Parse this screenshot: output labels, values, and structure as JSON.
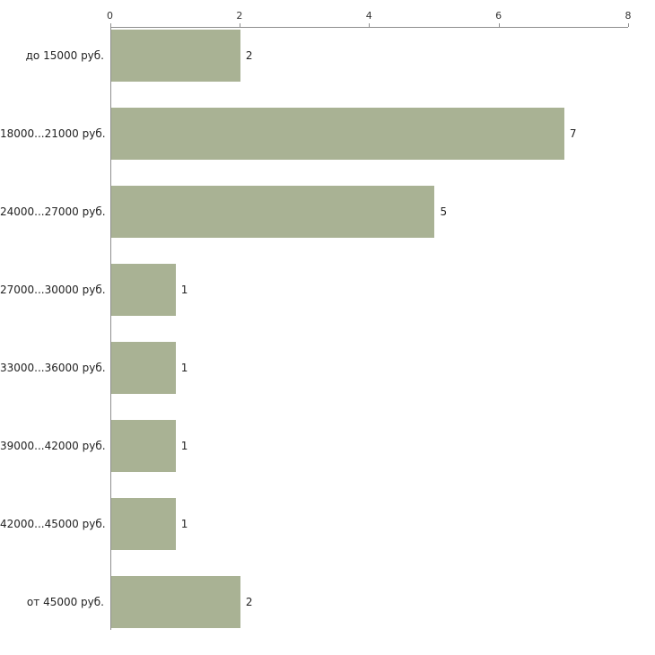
{
  "chart_data": {
    "type": "bar",
    "orientation": "horizontal",
    "title": "",
    "xlabel": "",
    "ylabel": "",
    "categories": [
      "до 15000 руб.",
      "18000...21000 руб.",
      "24000...27000 руб.",
      "27000...30000 руб.",
      "33000...36000 руб.",
      "39000...42000 руб.",
      "42000...45000 руб.",
      "от 45000 руб."
    ],
    "values": [
      2,
      7,
      5,
      1,
      1,
      1,
      1,
      2
    ],
    "value_labels": [
      "2",
      "7",
      "5",
      "1",
      "1",
      "1",
      "1",
      "2"
    ],
    "xlim": [
      0,
      8
    ],
    "xticks": [
      0,
      2,
      4,
      6,
      8
    ],
    "xtick_labels": [
      "0",
      "2",
      "4",
      "6",
      "8"
    ],
    "grid": false,
    "legend": false,
    "axis_position": "top-left",
    "colors": {
      "bar_fill": "#a9b294",
      "axis": "#8e8e8e",
      "text": "#222222",
      "tick_text": "#333333",
      "background": "#ffffff"
    }
  }
}
